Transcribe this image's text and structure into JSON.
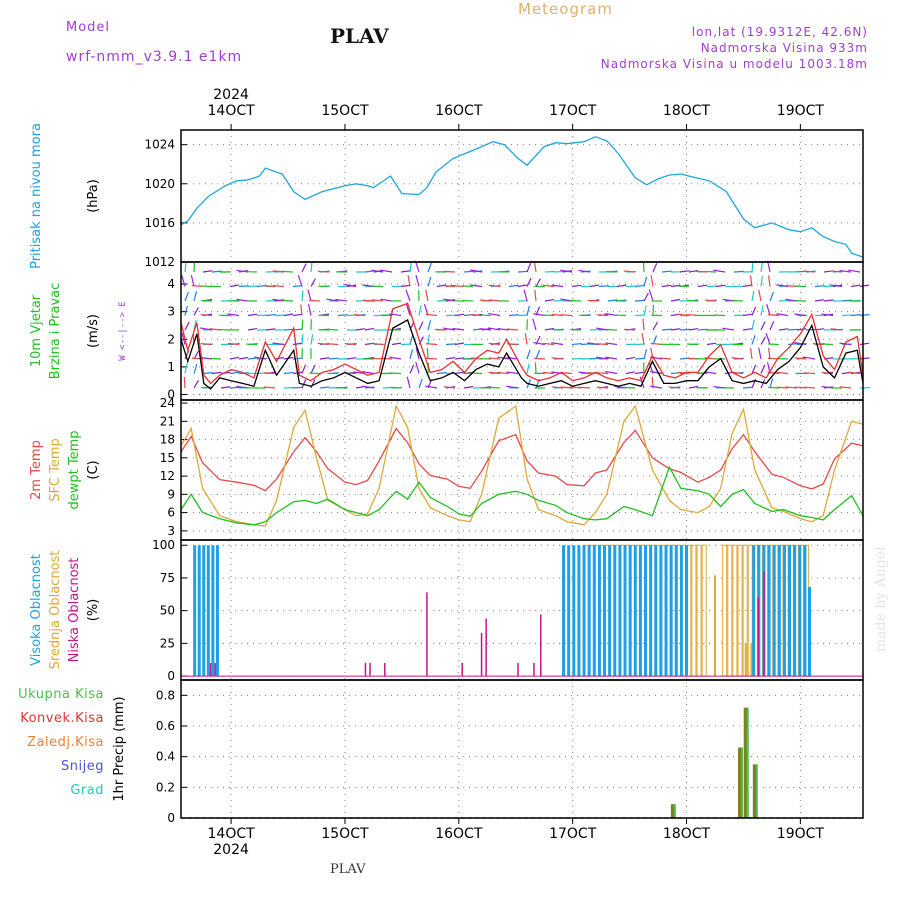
{
  "header": {
    "model_label": "Model",
    "model_name": "wrf-nmm_v3.9.1 e1km",
    "station": "PLAV",
    "title": "Meteogram",
    "coords": "lon,lat (19.9312E, 42.6N)",
    "elevation": "Nadmorska Visina 933m",
    "model_elevation": "Nadmorska Visina u modelu 1003.18m",
    "footer_station": "PLAV",
    "watermark": "made by Angel"
  },
  "colors": {
    "pressure": "#1fa6e0",
    "wind_black": "#000000",
    "wind_red": "#e83030",
    "temp2m": "#e84848",
    "sfc": "#e0a838",
    "dew": "#20c020",
    "high_cloud": "#1ea0e6",
    "mid_cloud": "#e0a838",
    "low_cloud": "#c8148c",
    "precip_total": "#4cc04c",
    "precip_conv": "#e83030",
    "precip_frozen": "#ee8030",
    "snow": "#5050e0",
    "hail": "#20c8c8",
    "grid": "#888888"
  },
  "chart_data": {
    "time_axis": {
      "year": "2024",
      "ticks": [
        "14OCT",
        "15OCT",
        "16OCT",
        "17OCT",
        "18OCT",
        "19OCT"
      ],
      "start_day": 13.56,
      "end_day": 19.55
    },
    "panels": [
      {
        "id": "pressure",
        "type": "line",
        "ylabel_lines": [
          "Pritisak na nivou mora"
        ],
        "unit": "(hPa)",
        "ylim": [
          1012,
          1025.5
        ],
        "yticks": [
          1012,
          1016,
          1020,
          1024
        ],
        "series": [
          {
            "x": [
              13.56,
              13.62,
              13.7,
              13.8,
              13.95,
              14.05,
              14.15,
              14.25,
              14.3,
              14.45,
              14.55,
              14.65,
              14.8,
              15.0,
              15.1,
              15.2,
              15.25,
              15.4,
              15.5,
              15.65,
              15.72,
              15.8,
              15.95,
              16.1,
              16.2,
              16.3,
              16.4,
              16.52,
              16.6,
              16.75,
              16.85,
              16.95,
              17.1,
              17.2,
              17.3,
              17.4,
              17.55,
              17.65,
              17.75,
              17.85,
              17.95,
              18.05,
              18.2,
              18.35,
              18.5,
              18.6,
              18.75,
              18.9,
              19.0,
              19.1,
              19.2,
              19.3,
              19.4,
              19.45,
              19.55
            ],
            "y": [
              1015.8,
              1016.2,
              1017.5,
              1018.7,
              1019.8,
              1020.3,
              1020.4,
              1020.8,
              1021.6,
              1021.0,
              1019.2,
              1018.4,
              1019.2,
              1019.8,
              1020.0,
              1019.8,
              1019.6,
              1020.8,
              1019.0,
              1018.9,
              1019.6,
              1021.2,
              1022.6,
              1023.3,
              1023.8,
              1024.3,
              1024.0,
              1022.6,
              1021.9,
              1023.8,
              1024.2,
              1024.1,
              1024.3,
              1024.8,
              1024.4,
              1023.1,
              1020.6,
              1019.9,
              1020.5,
              1020.9,
              1021.0,
              1020.7,
              1020.3,
              1019.2,
              1016.4,
              1015.5,
              1016.0,
              1015.3,
              1015.1,
              1015.5,
              1014.6,
              1014.1,
              1013.8,
              1012.9,
              1012.5
            ],
            "color_key": "pressure"
          }
        ]
      },
      {
        "id": "wind",
        "type": "line",
        "ylabel_lines": [
          "10m Vjetar",
          "Brzina i Pravac"
        ],
        "unit": "(m/s)",
        "compass": "W <--|--> E",
        "ylim": [
          -0.2,
          4.8
        ],
        "yticks": [
          0,
          1,
          2,
          3,
          4
        ],
        "series": [
          {
            "x": [
              13.56,
              13.62,
              13.7,
              13.76,
              13.82,
              13.9,
              14.0,
              14.1,
              14.2,
              14.3,
              14.4,
              14.55,
              14.6,
              14.7,
              14.8,
              14.9,
              15.0,
              15.1,
              15.2,
              15.3,
              15.42,
              15.55,
              15.65,
              15.75,
              15.85,
              15.95,
              16.05,
              16.15,
              16.25,
              16.35,
              16.42,
              16.55,
              16.6,
              16.7,
              16.8,
              16.9,
              17.0,
              17.1,
              17.2,
              17.3,
              17.4,
              17.5,
              17.6,
              17.7,
              17.8,
              17.9,
              18.0,
              18.1,
              18.2,
              18.3,
              18.4,
              18.5,
              18.6,
              18.7,
              18.8,
              18.9,
              19.0,
              19.1,
              19.2,
              19.3,
              19.4,
              19.5,
              19.55
            ],
            "y": [
              2.0,
              1.2,
              2.2,
              0.4,
              0.2,
              0.6,
              0.5,
              0.4,
              0.3,
              1.6,
              0.7,
              1.6,
              0.4,
              0.3,
              0.5,
              0.6,
              0.8,
              0.6,
              0.4,
              0.5,
              2.4,
              2.7,
              1.5,
              0.5,
              0.6,
              0.8,
              0.5,
              0.9,
              1.1,
              1.0,
              1.5,
              0.6,
              0.4,
              0.3,
              0.4,
              0.5,
              0.3,
              0.4,
              0.5,
              0.4,
              0.3,
              0.4,
              0.3,
              1.2,
              0.4,
              0.4,
              0.5,
              0.5,
              1.0,
              1.3,
              0.5,
              0.4,
              0.5,
              0.4,
              0.9,
              1.2,
              1.7,
              2.5,
              1.0,
              0.6,
              1.5,
              1.6,
              0.4
            ],
            "color_key": "wind_black"
          },
          {
            "x": [
              13.56,
              13.62,
              13.7,
              13.76,
              13.82,
              13.9,
              14.0,
              14.1,
              14.2,
              14.3,
              14.4,
              14.55,
              14.6,
              14.7,
              14.8,
              14.9,
              15.0,
              15.1,
              15.2,
              15.3,
              15.42,
              15.55,
              15.65,
              15.75,
              15.85,
              15.95,
              16.05,
              16.15,
              16.25,
              16.35,
              16.42,
              16.55,
              16.6,
              16.7,
              16.8,
              16.9,
              17.0,
              17.1,
              17.2,
              17.3,
              17.4,
              17.5,
              17.6,
              17.7,
              17.8,
              17.9,
              18.0,
              18.1,
              18.2,
              18.3,
              18.4,
              18.5,
              18.6,
              18.7,
              18.8,
              18.9,
              19.0,
              19.1,
              19.2,
              19.3,
              19.4,
              19.5,
              19.55
            ],
            "y": [
              2.6,
              1.6,
              2.6,
              0.7,
              0.4,
              0.7,
              0.9,
              0.8,
              0.6,
              1.9,
              1.2,
              2.4,
              0.7,
              0.5,
              0.8,
              0.9,
              1.1,
              0.9,
              0.7,
              0.8,
              3.1,
              3.3,
              2.0,
              0.8,
              0.9,
              1.2,
              0.8,
              1.3,
              1.6,
              1.5,
              2.0,
              1.0,
              0.7,
              0.5,
              0.6,
              0.8,
              0.5,
              0.6,
              0.8,
              0.6,
              0.5,
              0.6,
              0.5,
              1.4,
              0.7,
              0.6,
              0.8,
              0.8,
              1.4,
              1.8,
              0.8,
              0.6,
              0.8,
              0.6,
              1.3,
              1.7,
              2.2,
              2.9,
              1.4,
              0.9,
              1.9,
              2.1,
              0.7
            ],
            "color_key": "wind_red"
          }
        ]
      },
      {
        "id": "temp",
        "type": "line",
        "ylabel_lines": [
          "2m Temp",
          "SFC Temp",
          "dewpt Temp"
        ],
        "unit": "(C)",
        "ylim": [
          1.5,
          24.5
        ],
        "yticks": [
          3,
          6,
          9,
          12,
          15,
          18,
          21,
          24
        ],
        "series": [
          {
            "x": [
              13.56,
              13.65,
              13.75,
              13.9,
              14.05,
              14.2,
              14.3,
              14.4,
              14.55,
              14.65,
              14.75,
              14.85,
              15.0,
              15.1,
              15.2,
              15.3,
              15.45,
              15.55,
              15.65,
              15.75,
              15.9,
              16.0,
              16.1,
              16.2,
              16.35,
              16.5,
              16.6,
              16.7,
              16.85,
              16.95,
              17.1,
              17.2,
              17.3,
              17.45,
              17.55,
              17.7,
              17.85,
              17.95,
              18.1,
              18.2,
              18.3,
              18.4,
              18.5,
              18.6,
              18.75,
              18.85,
              19.0,
              19.1,
              19.2,
              19.3,
              19.45,
              19.55
            ],
            "y": [
              16.0,
              18.5,
              14.2,
              11.4,
              11.0,
              10.5,
              9.6,
              11.5,
              16.0,
              18.3,
              16.0,
              13.2,
              11.0,
              10.6,
              11.3,
              14.5,
              19.8,
              17.5,
              14.0,
              12.1,
              11.5,
              10.3,
              10.0,
              12.8,
              17.8,
              18.8,
              14.5,
              12.5,
              12.0,
              10.6,
              10.4,
              12.5,
              13.0,
              17.5,
              19.5,
              15.0,
              13.2,
              12.6,
              11.0,
              11.8,
              13.0,
              16.5,
              18.8,
              16.0,
              12.3,
              11.8,
              10.4,
              9.9,
              10.7,
              14.8,
              17.4,
              17.0
            ],
            "color_key": "temp2m"
          },
          {
            "x": [
              13.56,
              13.65,
              13.75,
              13.9,
              14.05,
              14.2,
              14.3,
              14.4,
              14.55,
              14.65,
              14.75,
              14.85,
              15.0,
              15.1,
              15.2,
              15.3,
              15.45,
              15.55,
              15.65,
              15.75,
              15.9,
              16.0,
              16.1,
              16.2,
              16.35,
              16.5,
              16.6,
              16.7,
              16.85,
              16.95,
              17.1,
              17.2,
              17.3,
              17.45,
              17.55,
              17.7,
              17.85,
              17.95,
              18.1,
              18.2,
              18.3,
              18.4,
              18.5,
              18.6,
              18.75,
              18.85,
              19.0,
              19.1,
              19.2,
              19.3,
              19.45,
              19.55
            ],
            "y": [
              17.0,
              19.8,
              10.0,
              5.5,
              4.5,
              4.0,
              3.8,
              8.0,
              20.0,
              22.8,
              15.0,
              8.0,
              6.5,
              5.5,
              5.8,
              10.0,
              23.5,
              20.0,
              10.0,
              6.8,
              5.5,
              4.8,
              4.5,
              9.0,
              21.5,
              23.5,
              11.5,
              6.5,
              5.5,
              4.5,
              4.0,
              6.0,
              9.0,
              21.0,
              23.5,
              13.0,
              8.0,
              6.5,
              6.0,
              7.0,
              10.0,
              19.0,
              23.0,
              13.0,
              6.8,
              6.2,
              5.0,
              4.5,
              5.5,
              13.0,
              21.0,
              20.5
            ],
            "color_key": "sfc"
          },
          {
            "x": [
              13.56,
              13.65,
              13.75,
              13.9,
              14.05,
              14.2,
              14.3,
              14.4,
              14.55,
              14.65,
              14.75,
              14.85,
              15.0,
              15.1,
              15.2,
              15.3,
              15.45,
              15.55,
              15.65,
              15.75,
              15.9,
              16.0,
              16.1,
              16.2,
              16.35,
              16.5,
              16.6,
              16.7,
              16.85,
              16.95,
              17.1,
              17.2,
              17.3,
              17.45,
              17.55,
              17.7,
              17.85,
              17.95,
              18.1,
              18.2,
              18.3,
              18.4,
              18.5,
              18.6,
              18.75,
              18.85,
              19.0,
              19.1,
              19.2,
              19.3,
              19.45,
              19.55
            ],
            "y": [
              6.5,
              9.0,
              6.0,
              5.0,
              4.3,
              4.0,
              4.5,
              6.0,
              7.8,
              8.0,
              7.5,
              8.2,
              6.5,
              6.0,
              5.5,
              6.5,
              9.5,
              8.2,
              11.0,
              8.5,
              7.0,
              5.8,
              5.4,
              7.5,
              9.0,
              9.5,
              9.0,
              8.0,
              7.2,
              6.0,
              5.0,
              4.8,
              5.0,
              7.0,
              6.5,
              5.5,
              13.5,
              10.0,
              9.6,
              9.0,
              7.0,
              9.0,
              9.8,
              7.5,
              6.2,
              6.5,
              5.5,
              5.2,
              4.8,
              6.5,
              8.8,
              5.5
            ],
            "color_key": "dew"
          }
        ]
      },
      {
        "id": "cloud",
        "type": "bar",
        "ylabel_lines": [
          "Visoka Oblacnost",
          "Srednja Oblacnost",
          "Niska Oblacnost"
        ],
        "unit": "(%)",
        "ylim": [
          -3,
          104
        ],
        "yticks": [
          0,
          25,
          50,
          75,
          100
        ],
        "high": {
          "x_range": [
            13.68,
            13.9
          ],
          "extra_ranges": [
            [
              16.92,
              18.03
            ],
            [
              18.59,
              19.05
            ]
          ],
          "value": 100,
          "late": [
            {
              "x": 19.08,
              "v": 68
            }
          ]
        },
        "mid": {
          "x_range": [
            17.12,
            19.1
          ],
          "value": 100,
          "gaps": [
            [
              18.2,
              18.3
            ]
          ],
          "dips": [
            {
              "x": 18.25,
              "v": 77
            },
            {
              "x": 18.52,
              "v": 25
            },
            {
              "x": 18.57,
              "v": 25
            },
            {
              "x": 18.86,
              "v": 15
            }
          ]
        },
        "low": [
          {
            "x": 13.82,
            "v": 10
          },
          {
            "x": 13.86,
            "v": 10
          },
          {
            "x": 15.18,
            "v": 10
          },
          {
            "x": 15.22,
            "v": 10
          },
          {
            "x": 15.35,
            "v": 10
          },
          {
            "x": 15.72,
            "v": 64
          },
          {
            "x": 16.03,
            "v": 10
          },
          {
            "x": 16.2,
            "v": 33
          },
          {
            "x": 16.24,
            "v": 44
          },
          {
            "x": 16.52,
            "v": 10
          },
          {
            "x": 16.66,
            "v": 10
          },
          {
            "x": 16.72,
            "v": 47
          },
          {
            "x": 18.68,
            "v": 80
          },
          {
            "x": 18.63,
            "v": 60
          }
        ]
      },
      {
        "id": "precip",
        "type": "bar",
        "ylabel_lines": [
          "Ukupna Kisa",
          "Konvek.Kisa",
          "Zaledj.Kisa",
          "Snijeg",
          "Grad"
        ],
        "unit": "1hr Precip (mm)",
        "ylim": [
          0,
          0.9
        ],
        "yticks": [
          0,
          0.2,
          0.4,
          0.6,
          0.8
        ],
        "bars": [
          {
            "x": 17.88,
            "v": 0.09
          },
          {
            "x": 18.47,
            "v": 0.46
          },
          {
            "x": 18.52,
            "v": 0.72
          },
          {
            "x": 18.6,
            "v": 0.35
          }
        ]
      }
    ]
  }
}
